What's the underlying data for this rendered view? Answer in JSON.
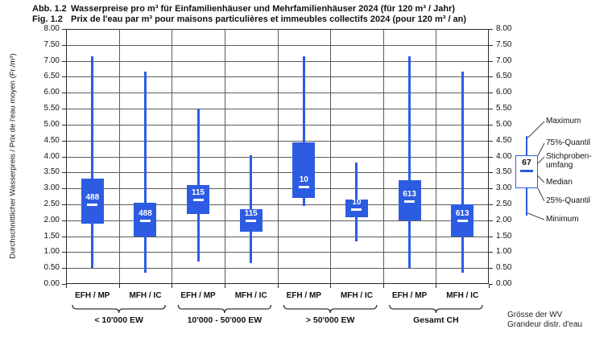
{
  "title": {
    "line1_label": "Abb. 1.2",
    "line1_text": "Wasserpreise pro m³ für Einfamilienhäuser und Mehrfamilienhäuser 2024 (für 120 m³ / Jahr)",
    "line2_label": "Fig. 1.2",
    "line2_text": "Prix de l'eau par m³ pour maisons particulières et immeubles collectifs 2024 (pour 120 m³ / an)"
  },
  "y_axis": {
    "label": "Durchschnittlicher Wasserpreis / Prix de l'eau moyen (Fr./m³)",
    "min": 0,
    "max": 8,
    "step": 0.5
  },
  "legend": {
    "items": [
      "Maximum",
      "75%-Quantil",
      "Stichproben-umfang",
      "Median",
      "25%-Quantil",
      "Minimum"
    ],
    "sample": {
      "n": 67,
      "max": 4.65,
      "q3": 4.05,
      "median": 3.55,
      "q1": 3.0,
      "min": 2.15
    }
  },
  "footer": {
    "size_label_de": "Grösse der WV",
    "size_label_fr": "Grandeur distr. d'eau"
  },
  "colors": {
    "box_blue": "#2d5ce2",
    "grid": "#5b5b5b",
    "frame": "#2b2b2b",
    "text": "#111111"
  },
  "chart_data": {
    "type": "boxplot",
    "title": "Wasserpreise pro m³ für Einfamilienhäuser und Mehrfamilienhäuser 2024 (für 120 m³ / Jahr)",
    "ylabel": "Durchschnittlicher Wasserpreis / Prix de l'eau moyen (Fr./m³)",
    "ylim": [
      0,
      8
    ],
    "ytick_step": 0.5,
    "grid": true,
    "legend_position": "right",
    "categories": [
      "EFH / MP",
      "MFH / IC"
    ],
    "groups": [
      {
        "label": "< 10'000 EW",
        "boxes": [
          {
            "category": "EFH / MP",
            "n": 488,
            "min": 0.5,
            "q1": 1.9,
            "median": 2.5,
            "q3": 3.3,
            "max": 7.15
          },
          {
            "category": "MFH / IC",
            "n": 488,
            "min": 0.35,
            "q1": 1.5,
            "median": 2.0,
            "q3": 2.55,
            "max": 6.65
          }
        ]
      },
      {
        "label": "10'000 - 50'000 EW",
        "boxes": [
          {
            "category": "EFH / MP",
            "n": 115,
            "min": 0.7,
            "q1": 2.2,
            "median": 2.65,
            "q3": 3.1,
            "max": 5.5
          },
          {
            "category": "MFH / IC",
            "n": 115,
            "min": 0.65,
            "q1": 1.65,
            "median": 2.0,
            "q3": 2.35,
            "max": 4.05
          }
        ]
      },
      {
        "label": "> 50'000 EW",
        "boxes": [
          {
            "category": "EFH / MP",
            "n": 10,
            "min": 2.45,
            "q1": 2.7,
            "median": 3.05,
            "q3": 4.45,
            "max": 7.15
          },
          {
            "category": "MFH / IC",
            "n": 10,
            "min": 1.35,
            "q1": 2.1,
            "median": 2.35,
            "q3": 2.65,
            "max": 3.8
          }
        ]
      },
      {
        "label": "Gesamt CH",
        "boxes": [
          {
            "category": "EFH / MP",
            "n": 613,
            "min": 0.5,
            "q1": 2.0,
            "median": 2.6,
            "q3": 3.25,
            "max": 7.15
          },
          {
            "category": "MFH / IC",
            "n": 613,
            "min": 0.35,
            "q1": 1.5,
            "median": 2.0,
            "q3": 2.5,
            "max": 6.65
          }
        ]
      }
    ]
  }
}
